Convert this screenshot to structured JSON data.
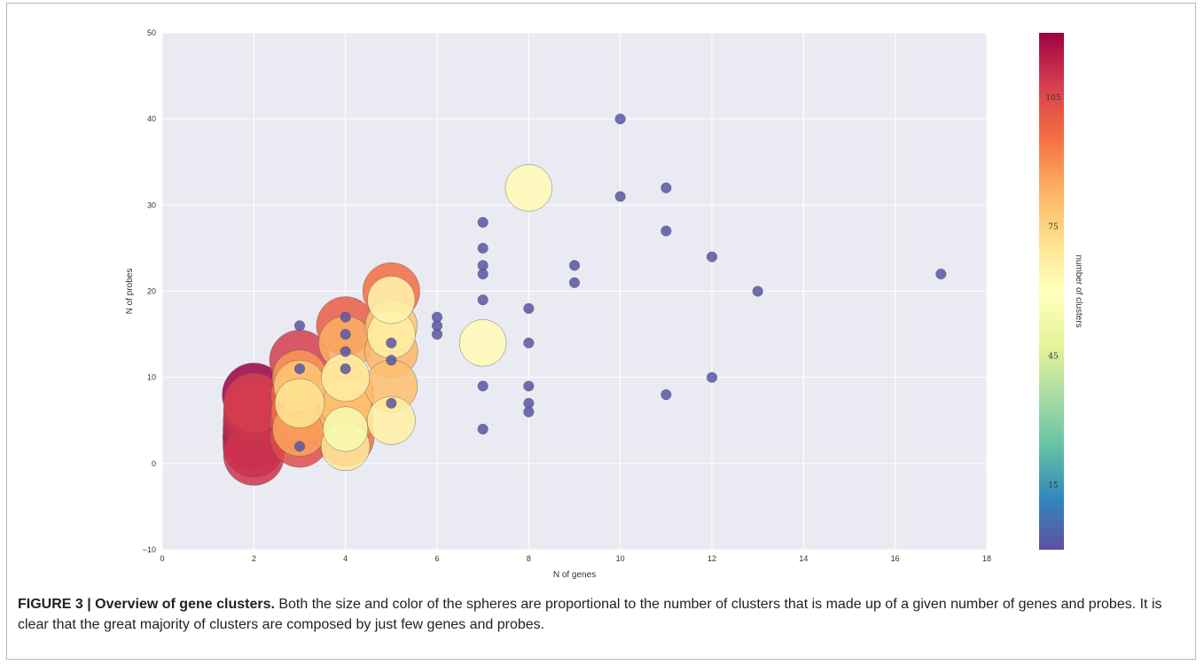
{
  "caption": {
    "heading": "FIGURE 3 | Overview of gene clusters.",
    "body": " Both the size and color of the spheres are proportional to the number of clusters that is made up of a given number of genes and probes. It is clear that the great majority of clusters are composed by just few genes and probes."
  },
  "chart_data": {
    "type": "scatter",
    "xlabel": "N of genes",
    "ylabel": "N of probes",
    "xlim": [
      0,
      18
    ],
    "ylim": [
      -10,
      50
    ],
    "xticks": [
      "0",
      "2",
      "4",
      "6",
      "8",
      "10",
      "12",
      "14",
      "16",
      "18"
    ],
    "yticks": [
      "−10",
      "0",
      "10",
      "20",
      "30",
      "40",
      "50"
    ],
    "grid": true,
    "colorbar": {
      "label": "number of clusters",
      "ticks": [
        "15",
        "45",
        "75",
        "105"
      ],
      "range": [
        0,
        120
      ],
      "colormap": "Spectral (blue = low, red = high)",
      "colors": [
        "#5e4fa2",
        "#3288bd",
        "#66c2a5",
        "#abdda4",
        "#e6f598",
        "#ffffbf",
        "#fee08b",
        "#fdae61",
        "#f46d43",
        "#d53e4f",
        "#9e0142"
      ]
    },
    "points": [
      {
        "x": 2,
        "y": 8,
        "clusters": 120
      },
      {
        "x": 2,
        "y": 7,
        "clusters": 108
      },
      {
        "x": 2,
        "y": 6,
        "clusters": 110
      },
      {
        "x": 2,
        "y": 5,
        "clusters": 112
      },
      {
        "x": 2,
        "y": 4,
        "clusters": 114
      },
      {
        "x": 2,
        "y": 3,
        "clusters": 116
      },
      {
        "x": 2,
        "y": 2,
        "clusters": 114
      },
      {
        "x": 2,
        "y": 1,
        "clusters": 110
      },
      {
        "x": 3,
        "y": 16,
        "clusters": 1
      },
      {
        "x": 3,
        "y": 12,
        "clusters": 108
      },
      {
        "x": 3,
        "y": 11,
        "clusters": 1
      },
      {
        "x": 3,
        "y": 10,
        "clusters": 88
      },
      {
        "x": 3,
        "y": 9,
        "clusters": 78
      },
      {
        "x": 3,
        "y": 8,
        "clusters": 98
      },
      {
        "x": 3,
        "y": 7,
        "clusters": 70
      },
      {
        "x": 3,
        "y": 6,
        "clusters": 96
      },
      {
        "x": 3,
        "y": 5,
        "clusters": 102
      },
      {
        "x": 3,
        "y": 4,
        "clusters": 86
      },
      {
        "x": 3,
        "y": 3,
        "clusters": 104
      },
      {
        "x": 3,
        "y": 2,
        "clusters": 1
      },
      {
        "x": 4,
        "y": 17,
        "clusters": 1
      },
      {
        "x": 4,
        "y": 16,
        "clusters": 100
      },
      {
        "x": 4,
        "y": 15,
        "clusters": 1
      },
      {
        "x": 4,
        "y": 14,
        "clusters": 84
      },
      {
        "x": 4,
        "y": 13,
        "clusters": 1
      },
      {
        "x": 4,
        "y": 11,
        "clusters": 1
      },
      {
        "x": 4,
        "y": 10,
        "clusters": 66
      },
      {
        "x": 4,
        "y": 9,
        "clusters": 84
      },
      {
        "x": 4,
        "y": 8,
        "clusters": 96
      },
      {
        "x": 4,
        "y": 7,
        "clusters": 80
      },
      {
        "x": 4,
        "y": 6,
        "clusters": 82
      },
      {
        "x": 4,
        "y": 5,
        "clusters": 90
      },
      {
        "x": 4,
        "y": 4,
        "clusters": 56
      },
      {
        "x": 4,
        "y": 3,
        "clusters": 96
      },
      {
        "x": 4,
        "y": 2,
        "clusters": 68
      },
      {
        "x": 5,
        "y": 20,
        "clusters": 96
      },
      {
        "x": 5,
        "y": 19,
        "clusters": 64
      },
      {
        "x": 5,
        "y": 16,
        "clusters": 78
      },
      {
        "x": 5,
        "y": 15,
        "clusters": 66
      },
      {
        "x": 5,
        "y": 14,
        "clusters": 1
      },
      {
        "x": 5,
        "y": 13,
        "clusters": 82
      },
      {
        "x": 5,
        "y": 12,
        "clusters": 1
      },
      {
        "x": 5,
        "y": 9,
        "clusters": 80
      },
      {
        "x": 5,
        "y": 7,
        "clusters": 1
      },
      {
        "x": 5,
        "y": 5,
        "clusters": 66
      },
      {
        "x": 6,
        "y": 17,
        "clusters": 1
      },
      {
        "x": 6,
        "y": 16,
        "clusters": 1
      },
      {
        "x": 6,
        "y": 15,
        "clusters": 1
      },
      {
        "x": 7,
        "y": 28,
        "clusters": 1
      },
      {
        "x": 7,
        "y": 25,
        "clusters": 1
      },
      {
        "x": 7,
        "y": 23,
        "clusters": 1
      },
      {
        "x": 7,
        "y": 22,
        "clusters": 1
      },
      {
        "x": 7,
        "y": 19,
        "clusters": 1
      },
      {
        "x": 7,
        "y": 14,
        "clusters": 62
      },
      {
        "x": 7,
        "y": 9,
        "clusters": 1
      },
      {
        "x": 7,
        "y": 4,
        "clusters": 1
      },
      {
        "x": 8,
        "y": 32,
        "clusters": 62
      },
      {
        "x": 8,
        "y": 18,
        "clusters": 1
      },
      {
        "x": 8,
        "y": 14,
        "clusters": 1
      },
      {
        "x": 8,
        "y": 9,
        "clusters": 1
      },
      {
        "x": 8,
        "y": 7,
        "clusters": 1
      },
      {
        "x": 8,
        "y": 6,
        "clusters": 1
      },
      {
        "x": 9,
        "y": 23,
        "clusters": 1
      },
      {
        "x": 9,
        "y": 21,
        "clusters": 1
      },
      {
        "x": 10,
        "y": 40,
        "clusters": 1
      },
      {
        "x": 10,
        "y": 31,
        "clusters": 1
      },
      {
        "x": 11,
        "y": 32,
        "clusters": 1
      },
      {
        "x": 11,
        "y": 27,
        "clusters": 1
      },
      {
        "x": 11,
        "y": 8,
        "clusters": 1
      },
      {
        "x": 12,
        "y": 24,
        "clusters": 1
      },
      {
        "x": 12,
        "y": 10,
        "clusters": 1
      },
      {
        "x": 13,
        "y": 20,
        "clusters": 1
      },
      {
        "x": 17,
        "y": 22,
        "clusters": 1
      }
    ]
  }
}
